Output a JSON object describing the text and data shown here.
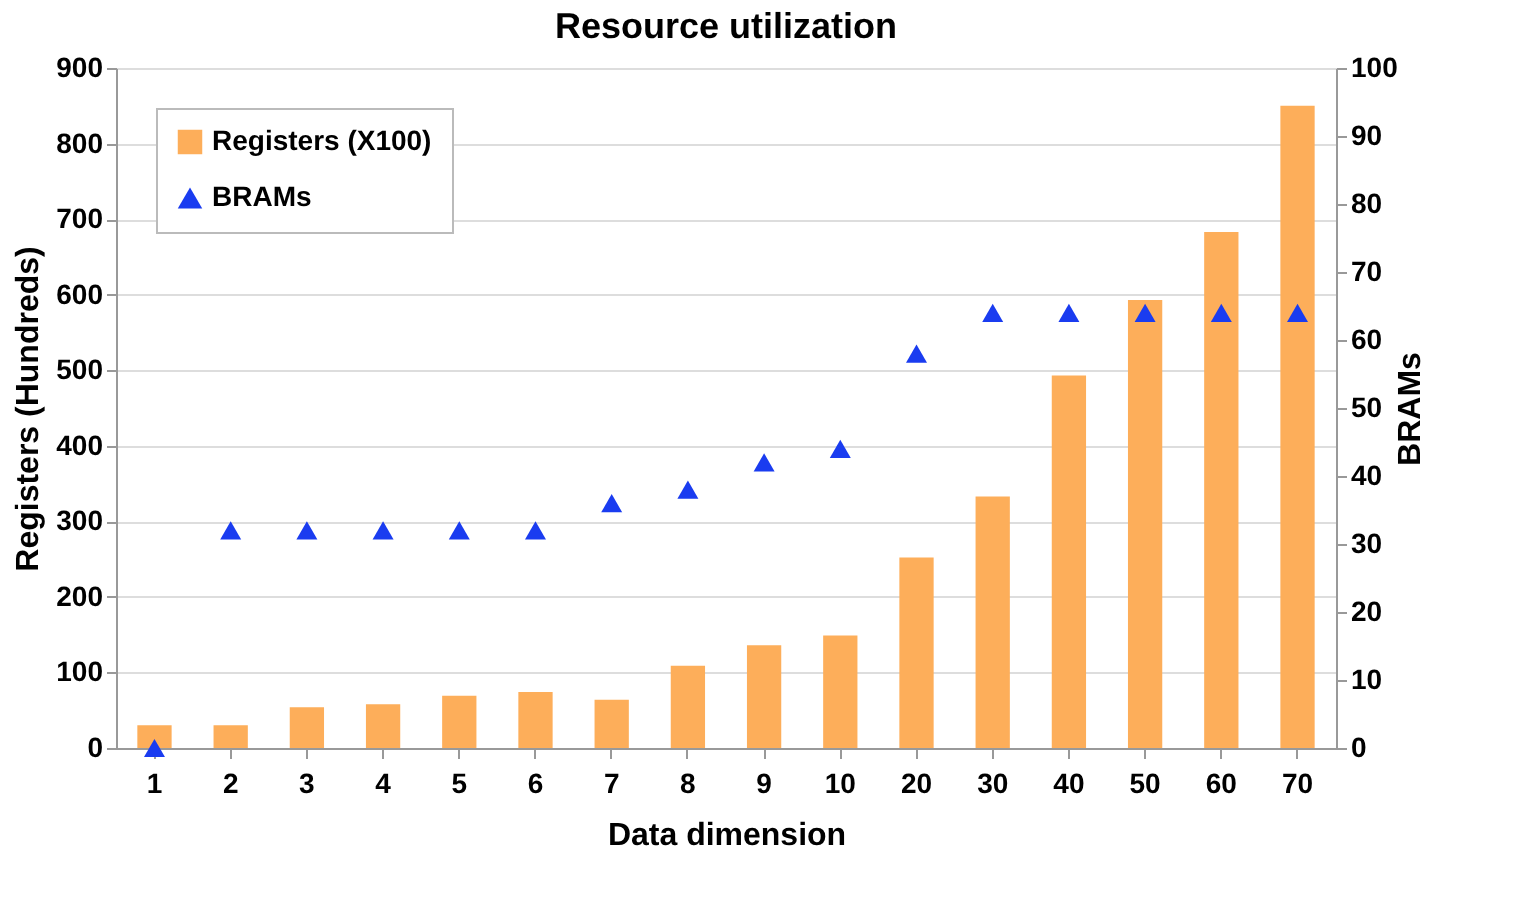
{
  "chart_data": {
    "type": "bar",
    "title": "Resource utilization",
    "xlabel": "Data dimension",
    "ylabel": "Registers (Hundreds)",
    "y2label": "BRAMs",
    "categories": [
      "1",
      "2",
      "3",
      "4",
      "5",
      "6",
      "7",
      "8",
      "9",
      "10",
      "20",
      "30",
      "40",
      "50",
      "60",
      "70"
    ],
    "series": [
      {
        "name": "Registers (X100)",
        "color": "#fdae5a",
        "values": [
          30,
          30,
          54,
          58,
          69,
          74,
          64,
          109,
          136,
          149,
          252,
          333,
          493,
          593,
          683,
          850
        ]
      },
      {
        "name": "BRAMs",
        "type": "scatter",
        "axis": "y2",
        "marker": "triangle",
        "color": "#1a3cf0",
        "values": [
          0,
          32,
          32,
          32,
          32,
          32,
          36,
          38,
          42,
          44,
          58,
          64,
          64,
          64,
          64,
          64
        ]
      }
    ],
    "ylim": [
      0,
      900
    ],
    "yticks": [
      0,
      100,
      200,
      300,
      400,
      500,
      600,
      700,
      800,
      900
    ],
    "y2lim": [
      0,
      100
    ],
    "y2ticks": [
      0,
      10,
      20,
      30,
      40,
      50,
      60,
      70,
      80,
      90,
      100
    ],
    "grid": "y",
    "legend": "top left"
  }
}
